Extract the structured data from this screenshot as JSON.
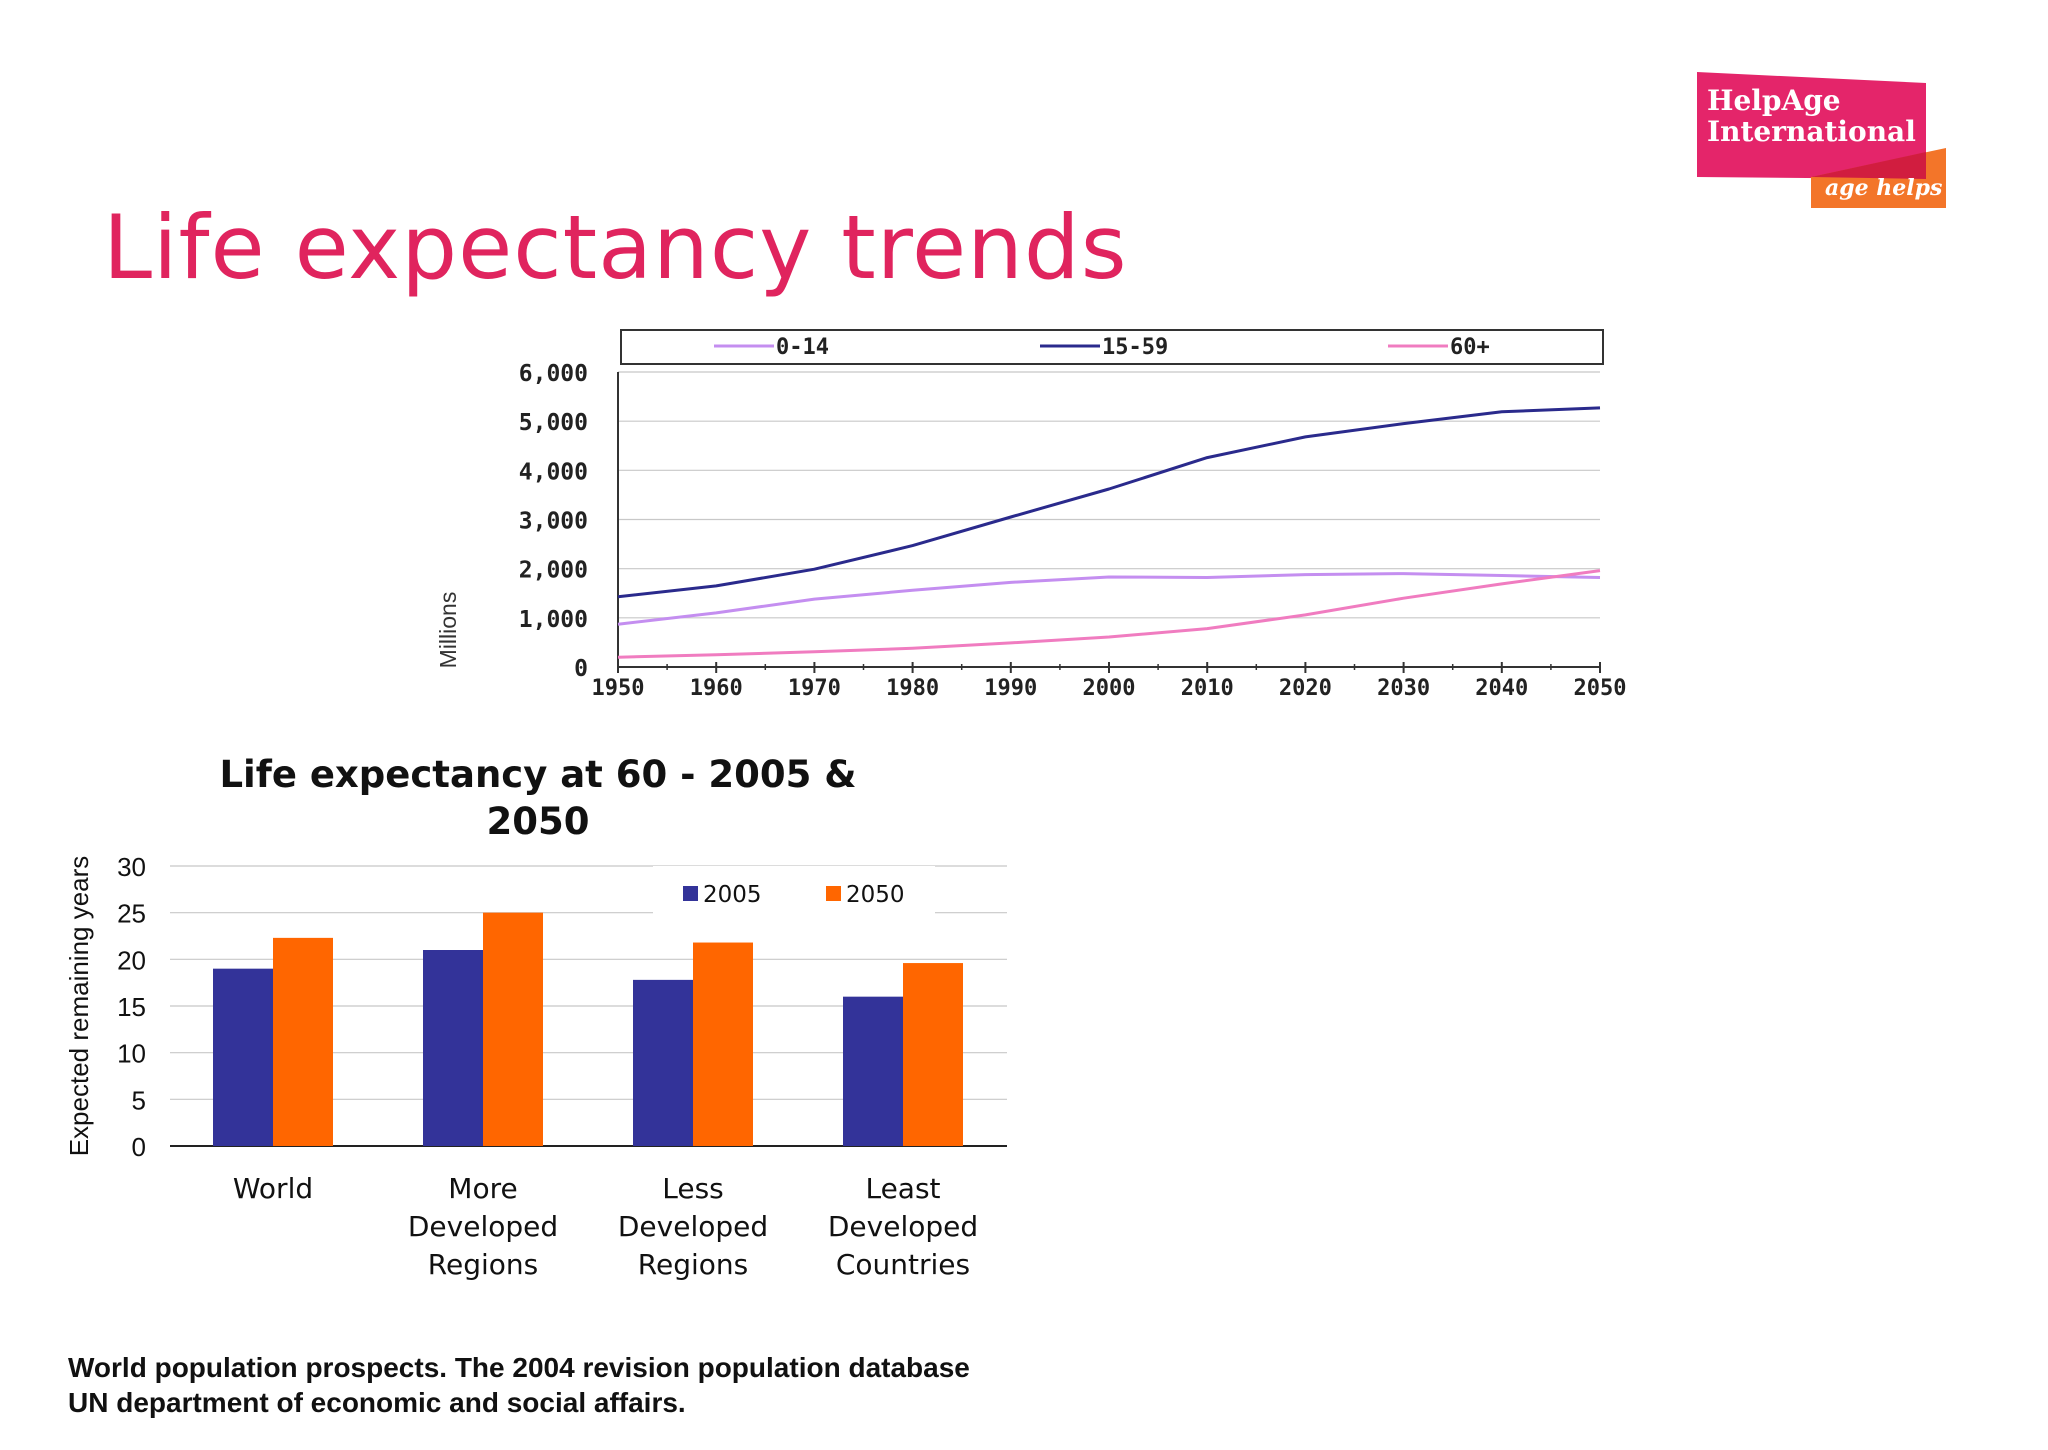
{
  "slide": {
    "title": "Life expectancy trends",
    "footer_lines": [
      "World population prospects. The 2004 revision population database",
      "UN department of economic and social affairs."
    ]
  },
  "logo": {
    "line1": "HelpAge",
    "line2": "International",
    "tagline": "age helps",
    "colors": {
      "primary": "#e4256a",
      "secondary": "#f37529"
    }
  },
  "colors": {
    "title": "#e0245e"
  },
  "chart_data": [
    {
      "type": "line",
      "title": "",
      "xlabel": "",
      "ylabel": "Millions",
      "ylim": [
        0,
        6000
      ],
      "yticks": [
        "0",
        "1,000",
        "2,000",
        "3,000",
        "4,000",
        "5,000",
        "6,000"
      ],
      "ytick_values": [
        0,
        1000,
        2000,
        3000,
        4000,
        5000,
        6000
      ],
      "xticks": [
        "1950",
        "1960",
        "1970",
        "1980",
        "1990",
        "2000",
        "2010",
        "2020",
        "2030",
        "2040",
        "2050"
      ],
      "x": [
        1950,
        1960,
        1970,
        1980,
        1990,
        2000,
        2010,
        2020,
        2030,
        2040,
        2050
      ],
      "xlim": [
        1950,
        2050
      ],
      "grid": true,
      "legend_position": "top",
      "series": [
        {
          "name": "0-14",
          "color": "#c48ef0",
          "values": [
            870,
            1100,
            1380,
            1560,
            1720,
            1830,
            1820,
            1880,
            1900,
            1860,
            1820
          ]
        },
        {
          "name": "15-59",
          "color": "#2a2a8c",
          "values": [
            1430,
            1650,
            1990,
            2470,
            3050,
            3620,
            4260,
            4680,
            4950,
            5190,
            5270
          ]
        },
        {
          "name": "60+",
          "color": "#f07cc0",
          "values": [
            200,
            250,
            310,
            380,
            490,
            610,
            780,
            1060,
            1400,
            1690,
            1960
          ]
        }
      ]
    },
    {
      "type": "bar",
      "title": "Life expectancy at 60 - 2005 & 2050",
      "xlabel": "",
      "ylabel": "Expected remaining years",
      "ylim": [
        0,
        30
      ],
      "yticks": [
        "0",
        "5",
        "10",
        "15",
        "20",
        "25",
        "30"
      ],
      "ytick_values": [
        0,
        5,
        10,
        15,
        20,
        25,
        30
      ],
      "grid": true,
      "legend_position": "top-right",
      "categories": [
        [
          "World"
        ],
        [
          "More",
          "Developed",
          "Regions"
        ],
        [
          "Less",
          "Developed",
          "Regions"
        ],
        [
          "Least",
          "Developed",
          "Countries"
        ]
      ],
      "series": [
        {
          "name": "2005",
          "color": "#333399",
          "values": [
            19,
            21,
            17.8,
            16
          ]
        },
        {
          "name": "2050",
          "color": "#ff6600",
          "values": [
            22.3,
            25,
            21.8,
            19.6
          ]
        }
      ]
    }
  ]
}
